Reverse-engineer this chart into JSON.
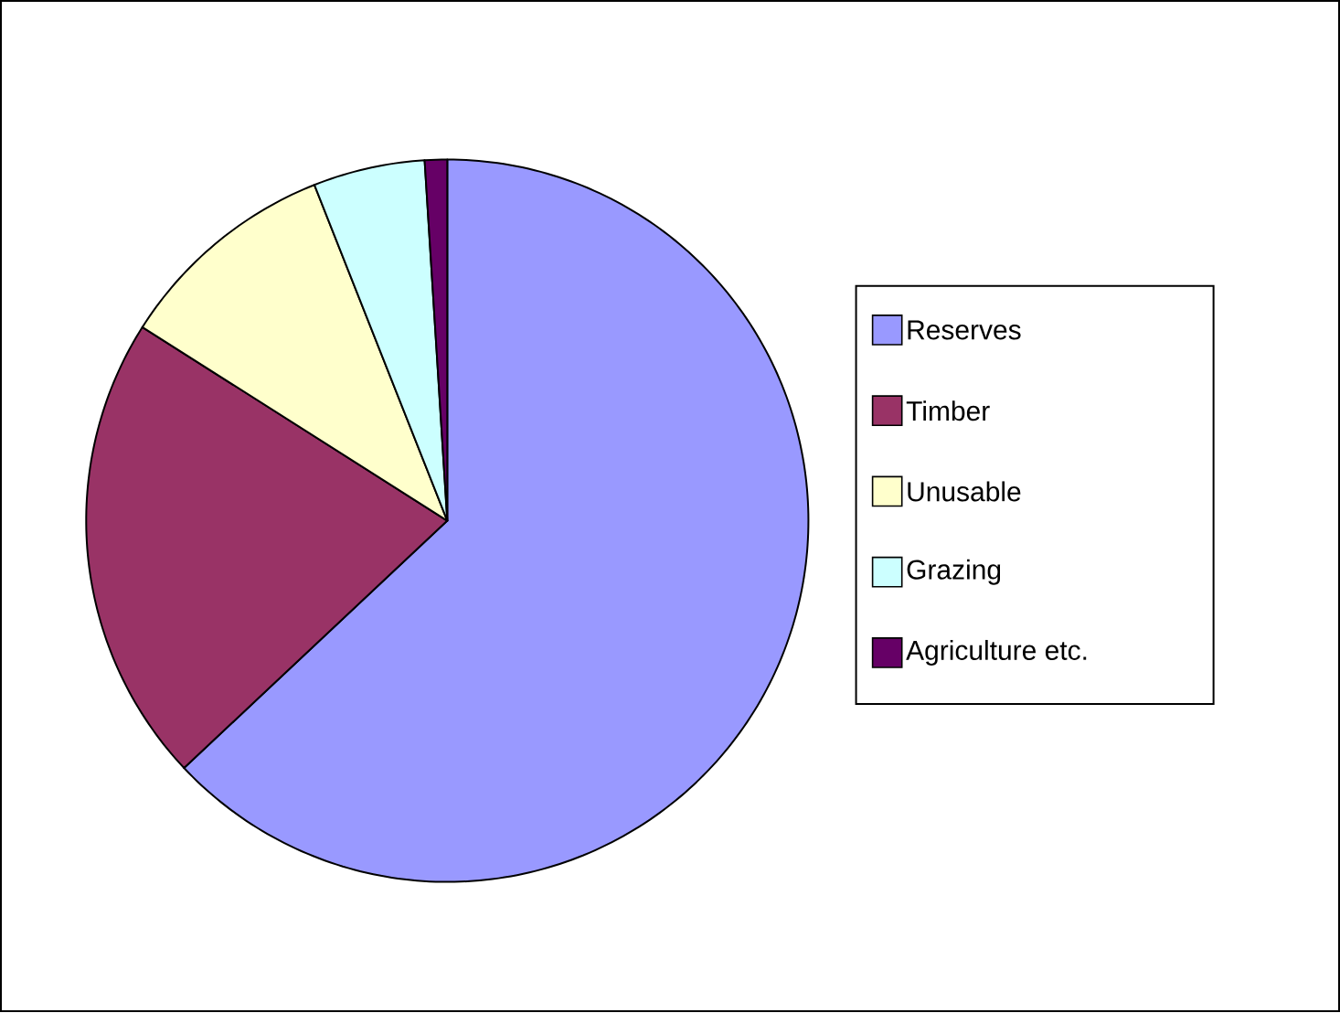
{
  "chart_data": {
    "type": "pie",
    "categories": [
      "Reserves",
      "Timber",
      "Unusable",
      "Grazing",
      "Agriculture etc."
    ],
    "values": [
      63,
      21,
      10,
      5,
      1
    ],
    "colors": [
      "#9999ff",
      "#993366",
      "#ffffcc",
      "#ccffff",
      "#660066"
    ],
    "legend": "right"
  }
}
